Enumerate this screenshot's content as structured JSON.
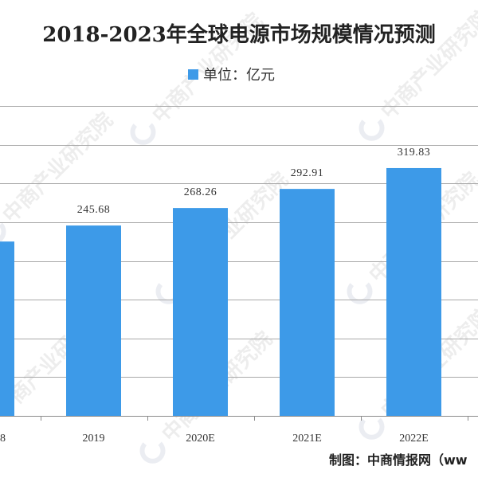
{
  "chart_data": {
    "type": "bar",
    "title": "2018-2023年全球电源市场规模情况预测",
    "categories": [
      "8",
      "2019",
      "2020E",
      "2021E",
      "2022E"
    ],
    "series": [
      {
        "name": "单位：亿元",
        "values": [
          225,
          245.68,
          268.26,
          292.91,
          319.83
        ],
        "color": "#3d9ae8"
      }
    ],
    "data_labels": [
      "",
      "245.68",
      "268.26",
      "292.91",
      "319.83"
    ],
    "ylim": [
      0,
      400
    ],
    "y_tick_step": 50,
    "grid": true,
    "legend_position": "top-center",
    "source": "制图：中商情报网（ww"
  },
  "watermark": "中商产业研究院"
}
